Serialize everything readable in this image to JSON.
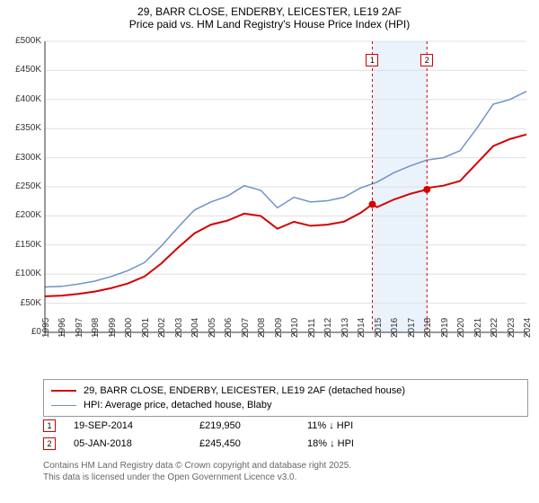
{
  "title_line1": "29, BARR CLOSE, ENDERBY, LEICESTER, LE19 2AF",
  "title_line2": "Price paid vs. HM Land Registry's House Price Index (HPI)",
  "chart": {
    "type": "line",
    "background_color": "#ffffff",
    "grid_color": "#e0e0e0",
    "axis_color": "#333333",
    "label_fontsize": 10,
    "x_years": [
      "1995",
      "1996",
      "1997",
      "1998",
      "1999",
      "2000",
      "2001",
      "2002",
      "2003",
      "2004",
      "2005",
      "2006",
      "2007",
      "2008",
      "2009",
      "2010",
      "2011",
      "2012",
      "2013",
      "2014",
      "2015",
      "2016",
      "2017",
      "2018",
      "2019",
      "2020",
      "2021",
      "2022",
      "2023",
      "2024"
    ],
    "ylim": [
      0,
      500000
    ],
    "ytick_step": 50000,
    "ytick_labels": [
      "£0",
      "£50K",
      "£100K",
      "£150K",
      "£200K",
      "£250K",
      "£300K",
      "£350K",
      "£400K",
      "£450K",
      "£500K"
    ],
    "shade_band": {
      "x_start": 2014.72,
      "x_end": 2018.01,
      "fill": "#eaf2fb"
    },
    "series": [
      {
        "name": "price_paid",
        "color": "#d40000",
        "line_width": 2,
        "marker_color": "#d40000",
        "marker_size": 4,
        "points": [
          [
            1995,
            62000
          ],
          [
            1996,
            63000
          ],
          [
            1997,
            66000
          ],
          [
            1998,
            70000
          ],
          [
            1999,
            76000
          ],
          [
            2000,
            84000
          ],
          [
            2001,
            96000
          ],
          [
            2002,
            118000
          ],
          [
            2003,
            145000
          ],
          [
            2004,
            170000
          ],
          [
            2005,
            185000
          ],
          [
            2006,
            192000
          ],
          [
            2007,
            204000
          ],
          [
            2008,
            200000
          ],
          [
            2009,
            178000
          ],
          [
            2010,
            190000
          ],
          [
            2011,
            183000
          ],
          [
            2012,
            185000
          ],
          [
            2013,
            190000
          ],
          [
            2014,
            205000
          ],
          [
            2014.72,
            219950
          ],
          [
            2015,
            215000
          ],
          [
            2016,
            228000
          ],
          [
            2017,
            238000
          ],
          [
            2018.01,
            245450
          ],
          [
            2018,
            248000
          ],
          [
            2019,
            252000
          ],
          [
            2020,
            260000
          ],
          [
            2021,
            290000
          ],
          [
            2022,
            320000
          ],
          [
            2023,
            332000
          ],
          [
            2024,
            340000
          ]
        ],
        "sale_markers": [
          [
            2014.72,
            219950
          ],
          [
            2018.01,
            245450
          ]
        ]
      },
      {
        "name": "hpi",
        "color": "#6f93c7",
        "line_width": 1.5,
        "points": [
          [
            1995,
            78000
          ],
          [
            1996,
            79000
          ],
          [
            1997,
            83000
          ],
          [
            1998,
            88000
          ],
          [
            1999,
            96000
          ],
          [
            2000,
            106000
          ],
          [
            2001,
            120000
          ],
          [
            2002,
            148000
          ],
          [
            2003,
            180000
          ],
          [
            2004,
            210000
          ],
          [
            2005,
            224000
          ],
          [
            2006,
            234000
          ],
          [
            2007,
            252000
          ],
          [
            2008,
            244000
          ],
          [
            2009,
            214000
          ],
          [
            2010,
            232000
          ],
          [
            2011,
            224000
          ],
          [
            2012,
            226000
          ],
          [
            2013,
            232000
          ],
          [
            2014,
            248000
          ],
          [
            2015,
            258000
          ],
          [
            2016,
            274000
          ],
          [
            2017,
            286000
          ],
          [
            2018,
            296000
          ],
          [
            2019,
            300000
          ],
          [
            2020,
            312000
          ],
          [
            2021,
            350000
          ],
          [
            2022,
            392000
          ],
          [
            2023,
            400000
          ],
          [
            2024,
            414000
          ]
        ]
      }
    ],
    "vlines": [
      {
        "x": 2014.72,
        "color": "#d40000",
        "dash": "3,3",
        "label": "1"
      },
      {
        "x": 2018.01,
        "color": "#d40000",
        "dash": "3,3",
        "label": "2"
      }
    ]
  },
  "legend": [
    {
      "color": "#d40000",
      "width": 2,
      "label": "29, BARR CLOSE, ENDERBY, LEICESTER, LE19 2AF (detached house)"
    },
    {
      "color": "#6f93c7",
      "width": 1.5,
      "label": "HPI: Average price, detached house, Blaby"
    }
  ],
  "markers": [
    {
      "num": "1",
      "color": "#d40000",
      "date": "19-SEP-2014",
      "price": "£219,950",
      "diff": "11% ↓ HPI"
    },
    {
      "num": "2",
      "color": "#d40000",
      "date": "05-JAN-2018",
      "price": "£245,450",
      "diff": "18% ↓ HPI"
    }
  ],
  "footer_line1": "Contains HM Land Registry data © Crown copyright and database right 2025.",
  "footer_line2": "This data is licensed under the Open Government Licence v3.0."
}
